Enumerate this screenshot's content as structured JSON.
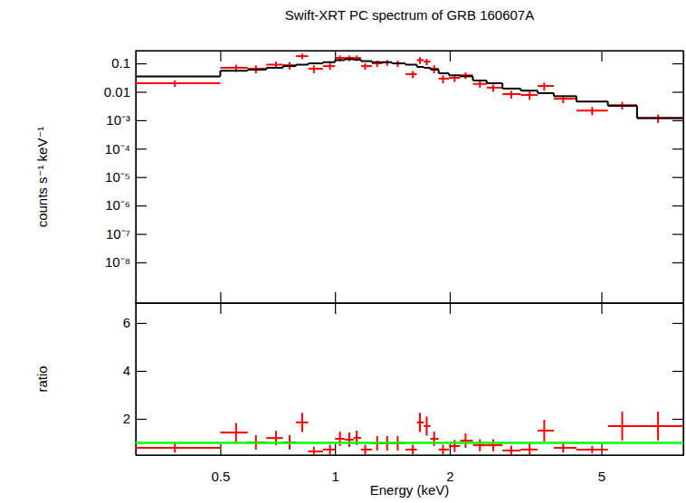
{
  "chart_data": [
    {
      "type": "scatter",
      "title": "Swift-XRT PC spectrum of GRB 160607A",
      "y_label": "counts s⁻¹ keV⁻¹",
      "log": true,
      "xlim": [
        0.3,
        8.2
      ],
      "ylim": [
        3.7e-10,
        0.28
      ],
      "xticks": [
        0.5,
        1,
        2,
        5
      ],
      "yticks": [
        {
          "value": 1e-08,
          "label": "10⁻⁸"
        },
        {
          "value": 1e-07,
          "label": "10⁻⁷"
        },
        {
          "value": 1e-06,
          "label": "10⁻⁶"
        },
        {
          "value": 1e-05,
          "label": "10⁻⁵"
        },
        {
          "value": 0.0001,
          "label": "10⁻⁴"
        },
        {
          "value": 0.001,
          "label": "10⁻³"
        },
        0.01,
        0.1
      ],
      "tick_labels": "y",
      "bins": [
        0.3,
        0.5,
        0.59,
        0.66,
        0.73,
        0.79,
        0.85,
        0.93,
        1.0,
        1.06,
        1.12,
        1.17,
        1.25,
        1.33,
        1.41,
        1.53,
        1.64,
        1.71,
        1.78,
        1.87,
        1.99,
        2.13,
        2.3,
        2.5,
        2.75,
        3.07,
        3.4,
        3.75,
        4.3,
        5.2,
        6.2,
        8.2
      ],
      "x": [
        0.38,
        0.55,
        0.62,
        0.7,
        0.76,
        0.82,
        0.88,
        0.97,
        1.03,
        1.09,
        1.14,
        1.2,
        1.29,
        1.37,
        1.46,
        1.6,
        1.67,
        1.74,
        1.82,
        1.92,
        2.06,
        2.2,
        2.4,
        2.6,
        2.9,
        3.24,
        3.54,
        3.97,
        4.73,
        5.67,
        7.04
      ],
      "series": [
        {
          "type": "scatter",
          "color": "#ff0000",
          "values": [
            0.02,
            0.07,
            0.065,
            0.09,
            0.086,
            0.18,
            0.065,
            0.08,
            0.155,
            0.155,
            0.155,
            0.08,
            0.1,
            0.107,
            0.1,
            0.042,
            0.13,
            0.115,
            0.065,
            0.029,
            0.031,
            0.038,
            0.019,
            0.014,
            0.0083,
            0.0077,
            0.016,
            0.0057,
            0.0022,
            0.0034,
            0.0012
          ],
          "errors": [
            0.005,
            0.02,
            0.02,
            0.025,
            0.025,
            0.04,
            0.02,
            0.02,
            0.035,
            0.035,
            0.035,
            0.02,
            0.025,
            0.025,
            0.025,
            0.012,
            0.035,
            0.03,
            0.02,
            0.009,
            0.009,
            0.01,
            0.005,
            0.004,
            0.0025,
            0.0025,
            0.005,
            0.0017,
            0.0007,
            0.001,
            0.0004
          ]
        },
        {
          "type": "step",
          "color": "#000000",
          "values": [
            0.035,
            0.055,
            0.06,
            0.07,
            0.08,
            0.09,
            0.1,
            0.11,
            0.13,
            0.14,
            0.135,
            0.12,
            0.11,
            0.11,
            0.1,
            0.09,
            0.075,
            0.07,
            0.06,
            0.045,
            0.038,
            0.035,
            0.025,
            0.02,
            0.013,
            0.011,
            0.009,
            0.007,
            0.0045,
            0.0032,
            0.0012
          ]
        }
      ]
    },
    {
      "type": "scatter",
      "x_label": "Energy (keV)",
      "y_label": "ratio",
      "log": "x",
      "xlim": [
        0.3,
        8.2
      ],
      "ylim": [
        0.49,
        6.83
      ],
      "xticks": [
        0.5,
        1,
        2,
        5
      ],
      "yticks": [
        2,
        4,
        6
      ],
      "bins": [
        0.3,
        0.5,
        0.59,
        0.66,
        0.73,
        0.79,
        0.85,
        0.93,
        1.0,
        1.06,
        1.12,
        1.17,
        1.25,
        1.33,
        1.41,
        1.53,
        1.64,
        1.71,
        1.78,
        1.87,
        1.99,
        2.13,
        2.3,
        2.5,
        2.75,
        3.07,
        3.4,
        3.75,
        4.3,
        5.2,
        6.2,
        8.2
      ],
      "x": [
        0.38,
        0.55,
        0.62,
        0.7,
        0.76,
        0.82,
        0.88,
        0.97,
        1.03,
        1.09,
        1.14,
        1.2,
        1.29,
        1.37,
        1.46,
        1.6,
        1.67,
        1.74,
        1.82,
        1.92,
        2.06,
        2.2,
        2.4,
        2.6,
        2.9,
        3.24,
        3.54,
        3.97,
        4.73,
        5.67,
        7.04
      ],
      "series": [
        {
          "type": "scatter",
          "color": "#ff0000",
          "values": [
            0.79,
            1.43,
            1.02,
            1.2,
            1.02,
            1.85,
            0.64,
            0.72,
            1.17,
            1.13,
            1.21,
            0.72,
            0.98,
            0.98,
            0.98,
            0.72,
            1.85,
            1.7,
            1.17,
            0.72,
            0.87,
            1.09,
            0.9,
            0.9,
            0.68,
            0.72,
            1.51,
            0.79,
            0.72,
            1.7,
            1.7
          ],
          "errors": [
            0.2,
            0.4,
            0.3,
            0.3,
            0.3,
            0.4,
            0.2,
            0.2,
            0.3,
            0.3,
            0.3,
            0.2,
            0.3,
            0.3,
            0.3,
            0.2,
            0.4,
            0.4,
            0.3,
            0.2,
            0.25,
            0.3,
            0.25,
            0.25,
            0.2,
            0.25,
            0.45,
            0.2,
            0.15,
            0.6,
            0.6
          ]
        },
        {
          "type": "line",
          "color": "#00ff00",
          "x": [
            0.3,
            8.2
          ],
          "values": [
            1,
            1
          ]
        }
      ]
    }
  ]
}
